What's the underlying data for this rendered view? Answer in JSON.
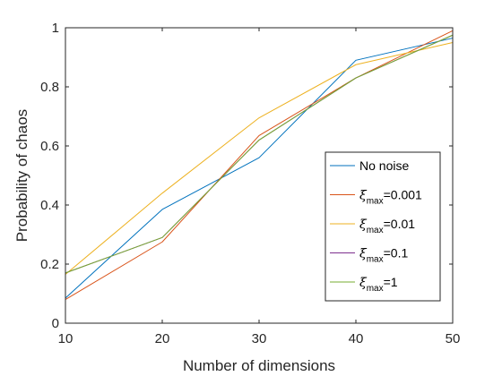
{
  "chart_data": {
    "type": "line",
    "xlabel": "Number of dimensions",
    "ylabel": "Probability of chaos",
    "xlim": [
      10,
      50
    ],
    "ylim": [
      0,
      1
    ],
    "xticks": [
      10,
      20,
      30,
      40,
      50
    ],
    "xtick_labels": [
      "10",
      "20",
      "30",
      "40",
      "50"
    ],
    "yticks": [
      0,
      0.2,
      0.4,
      0.6,
      0.8,
      1
    ],
    "ytick_labels": [
      "0",
      "0.2",
      "0.4",
      "0.6",
      "0.8",
      "1"
    ],
    "grid": false,
    "legend_position": "bottom-right",
    "x": [
      10,
      20,
      30,
      40,
      50
    ],
    "series": [
      {
        "name": "No noise",
        "legend": {
          "text": "No noise"
        },
        "color": "#0072BD",
        "values": [
          0.085,
          0.385,
          0.56,
          0.89,
          0.965
        ]
      },
      {
        "name": "ξmax=0.001",
        "legend": {
          "symbol": "ξ",
          "sub": "max",
          "value": "=0.001"
        },
        "color": "#D95319",
        "values": [
          0.08,
          0.275,
          0.635,
          0.83,
          0.99
        ]
      },
      {
        "name": "ξmax=0.01",
        "legend": {
          "symbol": "ξ",
          "sub": "max",
          "value": "=0.01"
        },
        "color": "#EDB120",
        "values": [
          0.165,
          0.44,
          0.695,
          0.875,
          0.95
        ]
      },
      {
        "name": "ξmax=0.1",
        "legend": {
          "symbol": "ξ",
          "sub": "max",
          "value": "=0.1"
        },
        "color": "#7E2F8E",
        "values": [
          0.17,
          0.29,
          0.62,
          0.83,
          0.975
        ]
      },
      {
        "name": "ξmax=1",
        "legend": {
          "symbol": "ξ",
          "sub": "max",
          "value": "=1"
        },
        "color": "#77AC30",
        "values": [
          0.17,
          0.29,
          0.62,
          0.83,
          0.975
        ]
      }
    ]
  }
}
